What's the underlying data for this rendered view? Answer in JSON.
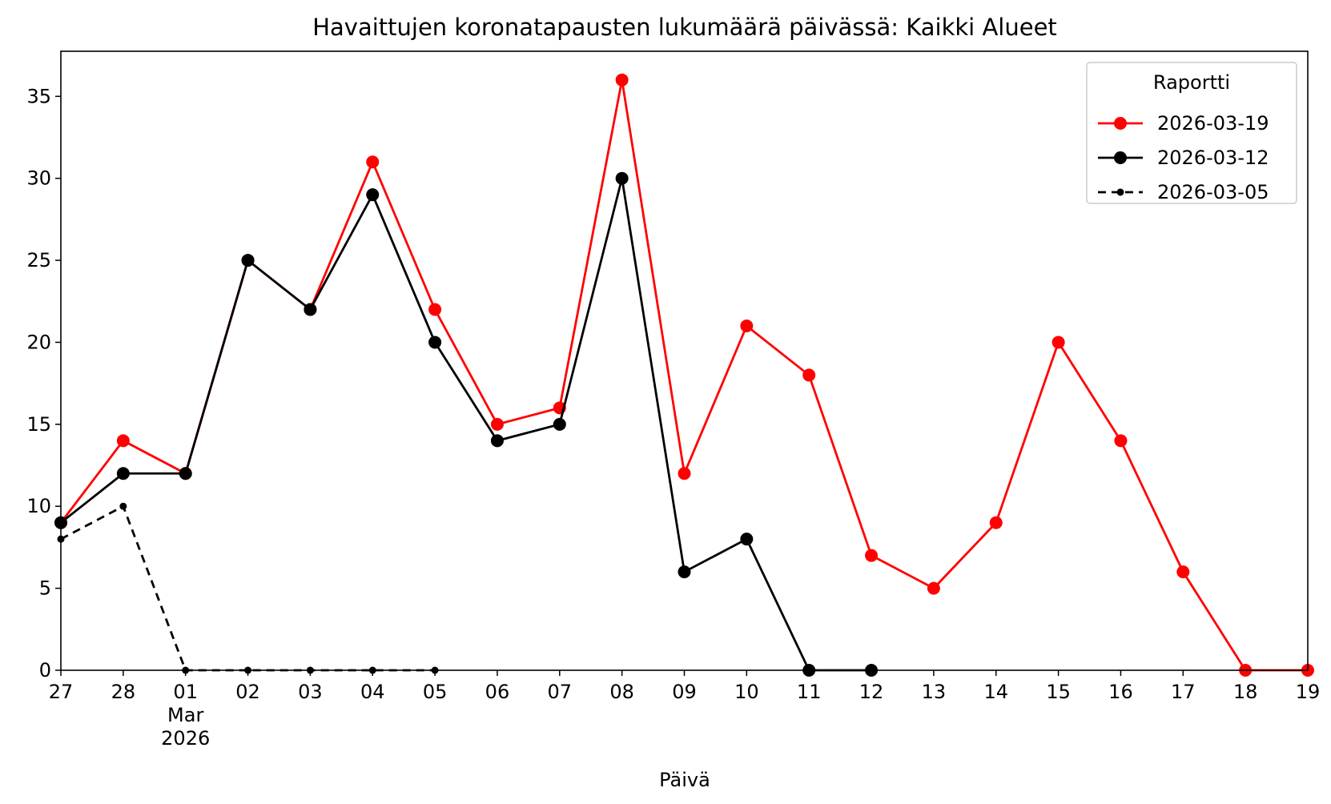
{
  "chart_data": {
    "type": "line",
    "title": "Havaittujen koronatapausten lukumäärä päivässä: Kaikki Alueet",
    "x_label": "Päivä",
    "categories": [
      "27",
      "28",
      "01\nMar\n2026",
      "02",
      "03",
      "04",
      "05",
      "06",
      "07",
      "08",
      "09",
      "10",
      "11",
      "12",
      "13",
      "14",
      "15",
      "16",
      "17",
      "18",
      "19"
    ],
    "series": [
      {
        "name": "2026-03-19",
        "color": "#ff0000",
        "linestyle": "solid",
        "marker": "large",
        "values": [
          9,
          14,
          12,
          25,
          22,
          31,
          22,
          15,
          16,
          36,
          12,
          21,
          18,
          7,
          5,
          9,
          20,
          14,
          6,
          0,
          0
        ]
      },
      {
        "name": "2026-03-12",
        "color": "#000000",
        "linestyle": "solid",
        "marker": "large",
        "values": [
          9,
          12,
          12,
          25,
          22,
          29,
          20,
          14,
          15,
          30,
          6,
          8,
          0,
          0,
          null,
          null,
          null,
          null,
          null,
          null,
          null
        ]
      },
      {
        "name": "2026-03-05",
        "color": "#000000",
        "linestyle": "dashed",
        "marker": "small",
        "values": [
          8,
          10,
          0,
          0,
          0,
          0,
          0,
          null,
          null,
          null,
          null,
          null,
          null,
          null,
          null,
          null,
          null,
          null,
          null,
          null,
          null
        ]
      }
    ],
    "legend_title": "Raportti",
    "legend_position": "upper right",
    "ylim": [
      0,
      37.75
    ],
    "yticks": [
      0,
      5,
      10,
      15,
      20,
      25,
      30,
      35
    ]
  }
}
